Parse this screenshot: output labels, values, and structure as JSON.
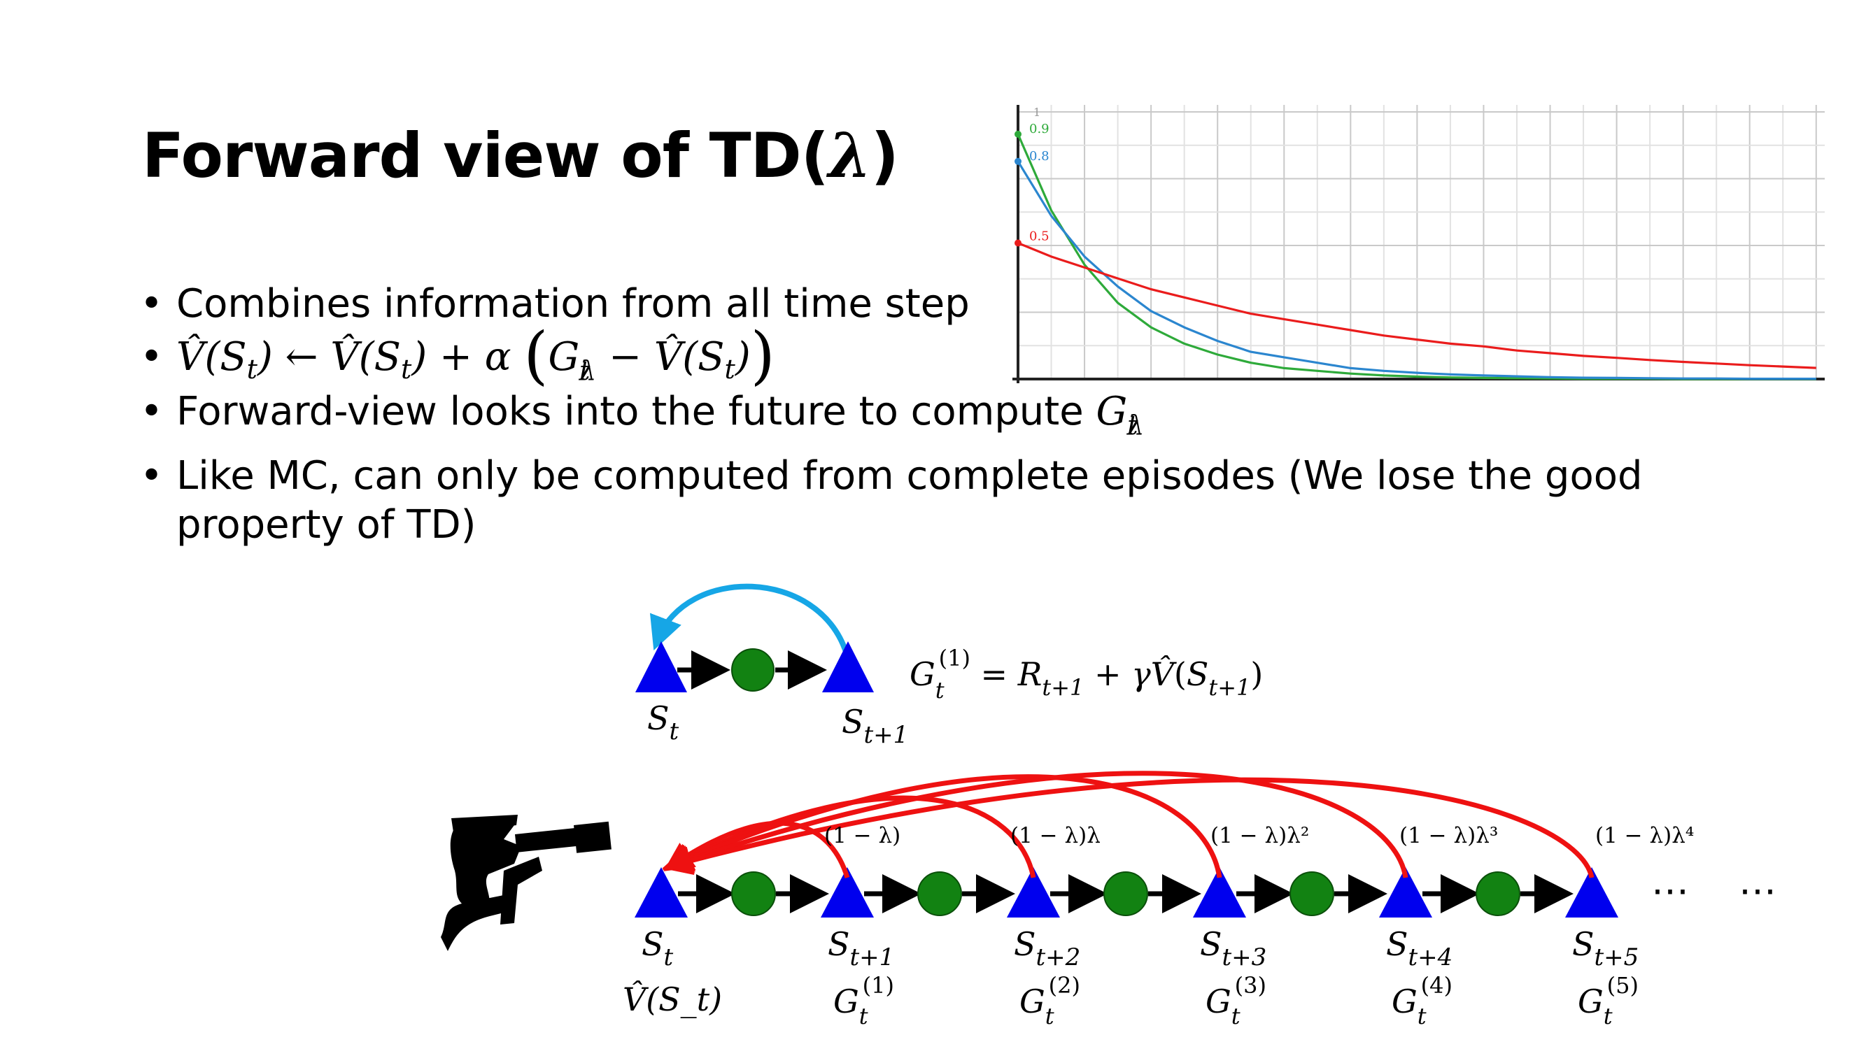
{
  "slide": {
    "title_prefix": "Forward view of TD(",
    "title_lambda": "λ",
    "title_suffix": ")"
  },
  "bullets": [
    {
      "text": "Combines information from all time step"
    },
    {
      "math": "update-rule"
    },
    {
      "text": "Forward-view looks into the future to compute "
    },
    {
      "text": "Like MC, can only be computed from complete episodes (We lose the good property of TD)"
    }
  ],
  "decay_chart": {
    "series": [
      {
        "label": "0.9",
        "color": "#2eaa3a"
      },
      {
        "label": "0.8",
        "color": "#2b86cf"
      },
      {
        "label": "0.5",
        "color": "#ea1c1c"
      }
    ],
    "top_tick": "1"
  },
  "chart_data": {
    "type": "line",
    "x": [
      0,
      0.5,
      1,
      1.5,
      2,
      2.5,
      3,
      3.5,
      4,
      4.5,
      5,
      5.5,
      6,
      6.5,
      7,
      7.5,
      8,
      8.5,
      9,
      9.5,
      10,
      10.5,
      11,
      11.5,
      12
    ],
    "series": [
      {
        "name": "0.9",
        "values": [
          0.9,
          0.62,
          0.42,
          0.28,
          0.19,
          0.13,
          0.09,
          0.06,
          0.04,
          0.03,
          0.02,
          0.013,
          0.009,
          0.006,
          0.004,
          0.003,
          0.002,
          0.001,
          0.001,
          0.001,
          0,
          0,
          0,
          0,
          0
        ]
      },
      {
        "name": "0.8",
        "values": [
          0.8,
          0.6,
          0.45,
          0.34,
          0.25,
          0.19,
          0.14,
          0.1,
          0.08,
          0.06,
          0.04,
          0.03,
          0.023,
          0.017,
          0.013,
          0.01,
          0.007,
          0.005,
          0.004,
          0.003,
          0.002,
          0.002,
          0.001,
          0.001,
          0.001
        ]
      },
      {
        "name": "0.5",
        "values": [
          0.5,
          0.45,
          0.41,
          0.37,
          0.33,
          0.3,
          0.27,
          0.24,
          0.22,
          0.2,
          0.18,
          0.16,
          0.145,
          0.13,
          0.12,
          0.105,
          0.095,
          0.085,
          0.078,
          0.07,
          0.063,
          0.057,
          0.051,
          0.046,
          0.041
        ]
      }
    ],
    "xlim": [
      0,
      12
    ],
    "ylim": [
      0,
      1
    ],
    "grid": true
  },
  "diagram": {
    "colors": {
      "state": "#0000ee",
      "action": "#128212",
      "arc_td": "#16a6e6",
      "arc_lambda": "#ee1111"
    },
    "top_labels": {
      "s0": "S",
      "s0_sub": "t",
      "s1": "S",
      "s1_sub": "t+1"
    },
    "td_target": "G_t^(1) = R_{t+1} + γV̂(S_{t+1})",
    "states": [
      {
        "name": "S",
        "sub": "t",
        "ret": "V̂(S_t)"
      },
      {
        "name": "S",
        "sub": "t+1",
        "ret_sup": "(1)"
      },
      {
        "name": "S",
        "sub": "t+2",
        "ret_sup": "(2)"
      },
      {
        "name": "S",
        "sub": "t+3",
        "ret_sup": "(3)"
      },
      {
        "name": "S",
        "sub": "t+4",
        "ret_sup": "(4)"
      },
      {
        "name": "S",
        "sub": "t+5",
        "ret_sup": "(5)"
      }
    ],
    "weights": [
      "(1 − λ)",
      "(1 − λ)λ",
      "(1 − λ)λ²",
      "(1 − λ)λ³",
      "(1 − λ)λ⁴"
    ],
    "ellipsis_1": "⋯",
    "ellipsis_2": "⋯",
    "observer_icon": "person-with-telescope-icon"
  }
}
